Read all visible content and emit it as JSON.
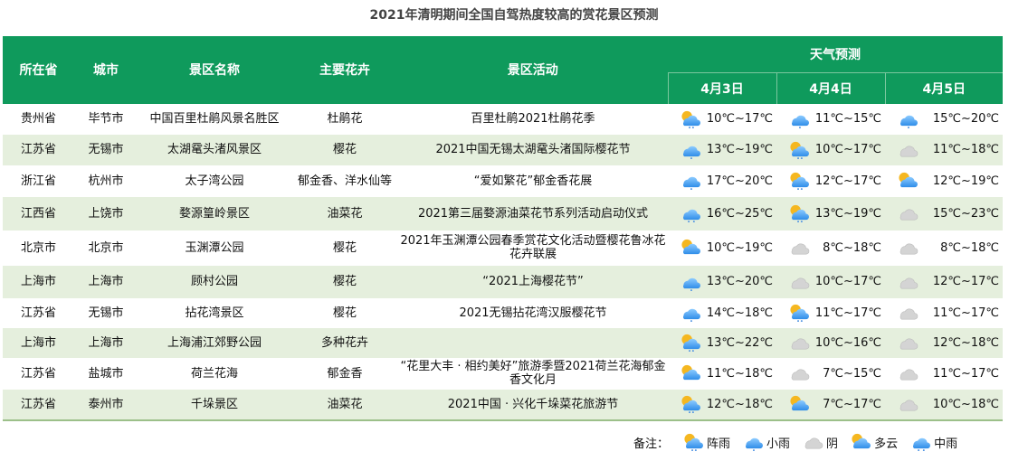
{
  "title": "2021年清明期间全国自驾热度较高的赏花景区预测",
  "headers": {
    "province": "所在省",
    "city": "城市",
    "scenic": "景区名称",
    "flower": "主要花卉",
    "activity": "景区活动",
    "weather": "天气预测",
    "dates": [
      "4月3日",
      "4月4日",
      "4月5日"
    ]
  },
  "rows": [
    {
      "province": "贵州省",
      "city": "毕节市",
      "scenic": "中国百里杜鹃风景名胜区",
      "flower": "杜鹃花",
      "activity": "百里杜鹃2021杜鹃花季",
      "weather": [
        {
          "icon": "shower",
          "temp": "10℃~17℃"
        },
        {
          "icon": "light-rain",
          "temp": "11℃~15℃"
        },
        {
          "icon": "light-rain",
          "temp": "15℃~20℃"
        }
      ]
    },
    {
      "province": "江苏省",
      "city": "无锡市",
      "scenic": "太湖鼋头渚风景区",
      "flower": "樱花",
      "activity": "2021中国无锡太湖鼋头渚国际樱花节",
      "weather": [
        {
          "icon": "light-rain",
          "temp": "13℃~19℃"
        },
        {
          "icon": "shower",
          "temp": "10℃~17℃"
        },
        {
          "icon": "overcast",
          "temp": "11℃~18℃"
        }
      ]
    },
    {
      "province": "浙江省",
      "city": "杭州市",
      "scenic": "太子湾公园",
      "flower": "郁金香、洋水仙等",
      "activity": "“爱如繁花”郁金香花展",
      "weather": [
        {
          "icon": "light-rain",
          "temp": "17℃~20℃"
        },
        {
          "icon": "shower",
          "temp": "12℃~17℃"
        },
        {
          "icon": "cloudy",
          "temp": "12℃~19℃"
        }
      ]
    },
    {
      "province": "江西省",
      "city": "上饶市",
      "scenic": "婺源篁岭景区",
      "flower": "油菜花",
      "activity": "2021第三届婺源油菜花节系列活动启动仪式",
      "weather": [
        {
          "icon": "moderate-rain",
          "temp": "16℃~25℃"
        },
        {
          "icon": "shower",
          "temp": "13℃~19℃"
        },
        {
          "icon": "overcast",
          "temp": "15℃~23℃"
        }
      ]
    },
    {
      "province": "北京市",
      "city": "北京市",
      "scenic": "玉渊潭公园",
      "flower": "樱花",
      "activity": "2021年玉渊潭公园春季赏花文化活动暨樱花鲁冰花花卉联展",
      "weather": [
        {
          "icon": "cloudy",
          "temp": "10℃~19℃"
        },
        {
          "icon": "overcast",
          "temp": "8℃~18℃"
        },
        {
          "icon": "overcast",
          "temp": "8℃~18℃"
        }
      ]
    },
    {
      "province": "上海市",
      "city": "上海市",
      "scenic": "顾村公园",
      "flower": "樱花",
      "activity": "“2021上海樱花节”",
      "weather": [
        {
          "icon": "light-rain",
          "temp": "13℃~20℃"
        },
        {
          "icon": "overcast",
          "temp": "10℃~17℃"
        },
        {
          "icon": "overcast",
          "temp": "12℃~17℃"
        }
      ]
    },
    {
      "province": "江苏省",
      "city": "无锡市",
      "scenic": "拈花湾景区",
      "flower": "樱花",
      "activity": "2021无锡拈花湾汉服樱花节",
      "weather": [
        {
          "icon": "light-rain",
          "temp": "14℃~18℃"
        },
        {
          "icon": "shower",
          "temp": "11℃~17℃"
        },
        {
          "icon": "overcast",
          "temp": "11℃~17℃"
        }
      ]
    },
    {
      "province": "上海市",
      "city": "上海市",
      "scenic": "上海浦江郊野公园",
      "flower": "多种花卉",
      "activity": "",
      "weather": [
        {
          "icon": "shower",
          "temp": "13℃~22℃"
        },
        {
          "icon": "overcast",
          "temp": "10℃~16℃"
        },
        {
          "icon": "overcast",
          "temp": "12℃~18℃"
        }
      ]
    },
    {
      "province": "江苏省",
      "city": "盐城市",
      "scenic": "荷兰花海",
      "flower": "郁金香",
      "activity": "“花里大丰 · 相约美好”旅游季暨2021荷兰花海郁金香文化月",
      "weather": [
        {
          "icon": "cloudy",
          "temp": "11℃~18℃"
        },
        {
          "icon": "overcast",
          "temp": "7℃~15℃"
        },
        {
          "icon": "overcast",
          "temp": "11℃~17℃"
        }
      ]
    },
    {
      "province": "江苏省",
      "city": "泰州市",
      "scenic": "千垛景区",
      "flower": "油菜花",
      "activity": "2021中国 · 兴化千垛菜花旅游节",
      "weather": [
        {
          "icon": "shower",
          "temp": "12℃~18℃"
        },
        {
          "icon": "cloudy",
          "temp": "7℃~17℃"
        },
        {
          "icon": "overcast",
          "temp": "10℃~18℃"
        }
      ]
    }
  ],
  "legend": {
    "label": "备注：",
    "items": [
      {
        "icon": "shower",
        "label": "阵雨"
      },
      {
        "icon": "light-rain",
        "label": "小雨"
      },
      {
        "icon": "overcast",
        "label": "阴"
      },
      {
        "icon": "cloudy",
        "label": "多云"
      },
      {
        "icon": "moderate-rain",
        "label": "中雨"
      }
    ]
  },
  "colors": {
    "header": "#0f9a5c",
    "alt_row": "#e5efdd",
    "rain_cloud": "#4aa3f0",
    "sun": "#f5b720",
    "overcast": "#d0d0d0"
  }
}
